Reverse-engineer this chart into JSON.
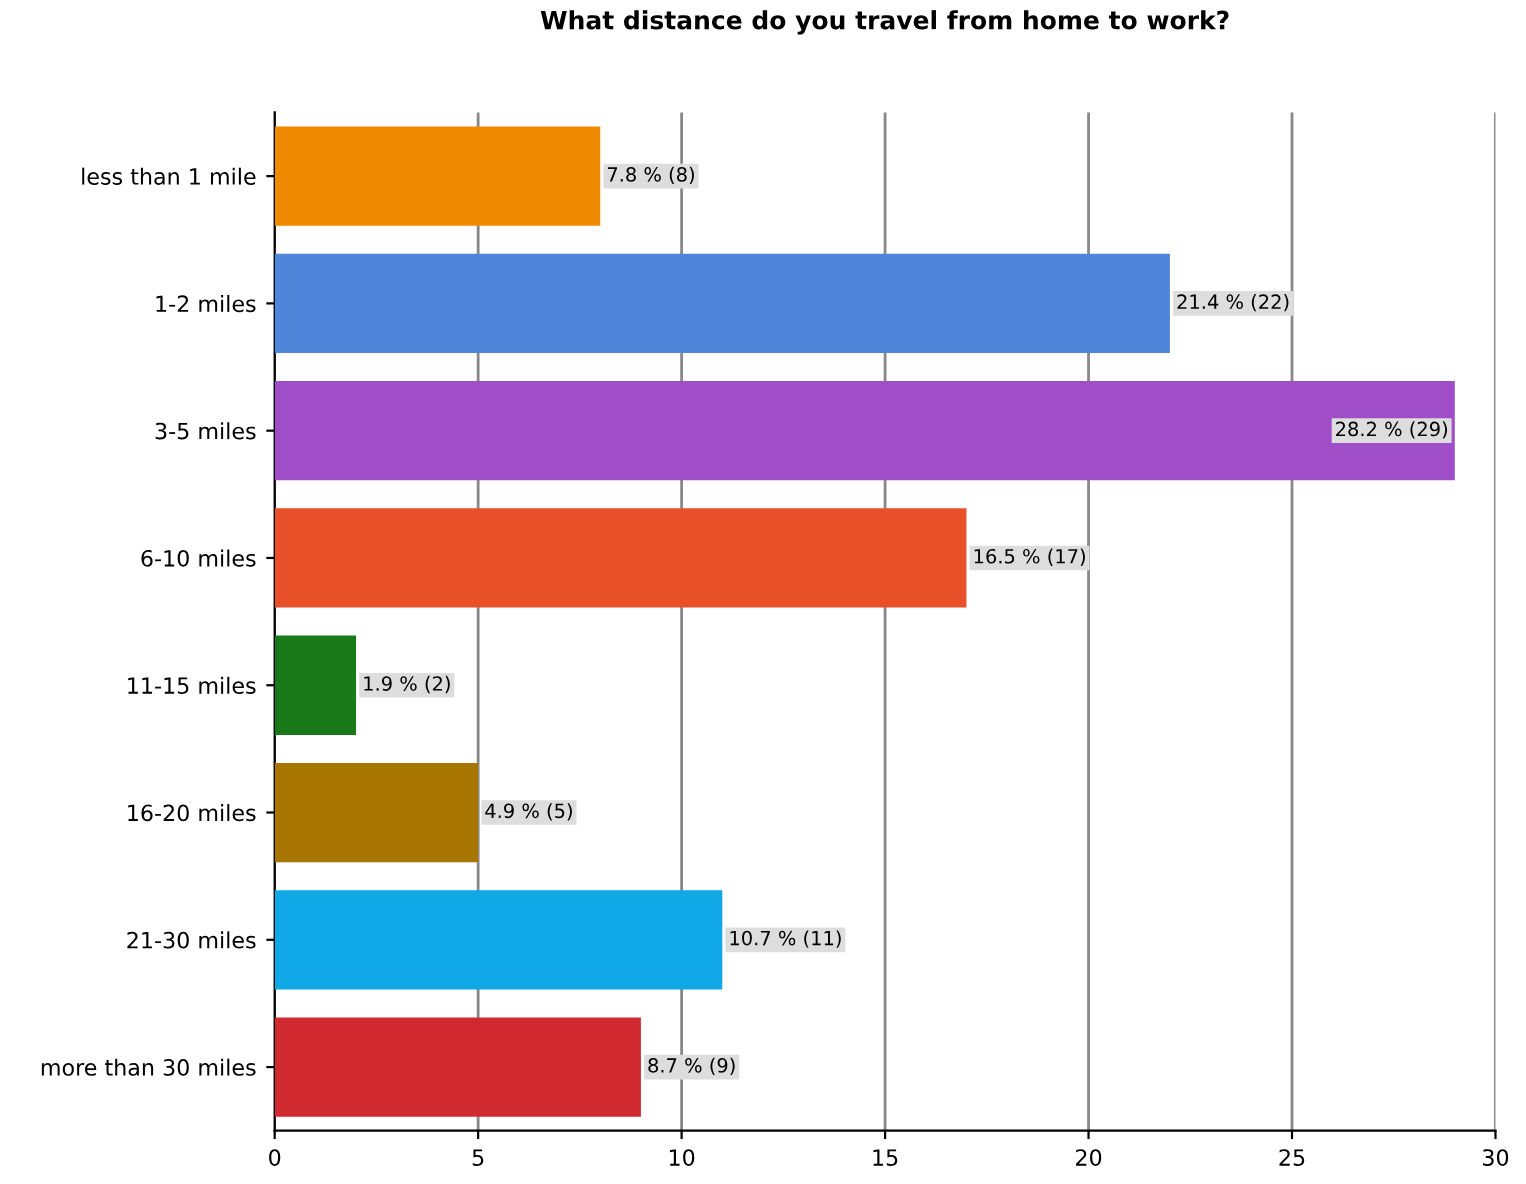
{
  "chart_data": {
    "type": "bar",
    "orientation": "horizontal",
    "title": "What distance do you travel from home to work?",
    "categories": [
      "less than 1 mile",
      "1-2 miles",
      "3-5 miles",
      "6-10 miles",
      "11-15 miles",
      "16-20 miles",
      "21-30 miles",
      "more than 30 miles"
    ],
    "values": [
      8,
      22,
      29,
      17,
      2,
      5,
      11,
      9
    ],
    "colors": [
      "#f08a00",
      "#4f86d9",
      "#a04dc8",
      "#e8502a",
      "#1a7a1a",
      "#a87500",
      "#11a8e8",
      "#d02a30"
    ],
    "value_labels": [
      "7.8 % (8)",
      "21.4 % (22)",
      "28.2 % (29)",
      "16.5 % (17)",
      "1.9 % (2)",
      "4.9 % (5)",
      "10.7 % (11)",
      "8.7 % (9)"
    ],
    "xlim": [
      0,
      30
    ],
    "xticks": [
      0,
      5,
      10,
      15,
      20,
      25,
      30
    ],
    "grid": "x",
    "legend": false
  }
}
